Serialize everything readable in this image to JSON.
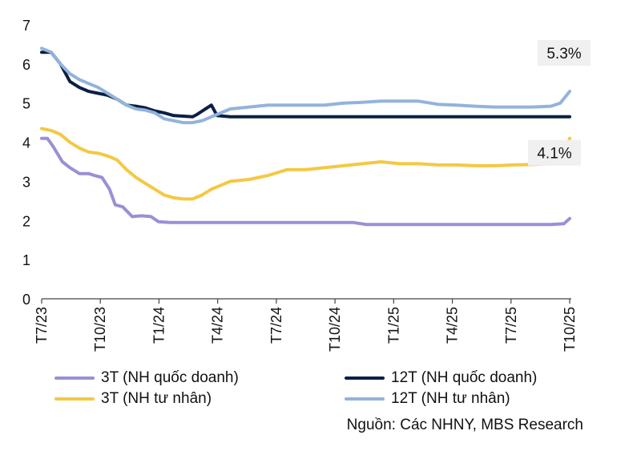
{
  "chart_data": {
    "type": "line",
    "title": "",
    "xlabel": "",
    "ylabel": "",
    "ylim": [
      0,
      7
    ],
    "yticks": [
      "0",
      "1",
      "2",
      "3",
      "4",
      "5",
      "6",
      "7"
    ],
    "grid": false,
    "legend_position": "bottom",
    "x_ticks": [
      "T7/23",
      "T10/23",
      "T1/24",
      "T4/24",
      "T7/24",
      "T10/24",
      "T1/25",
      "T4/25",
      "T7/25",
      "T10/25"
    ],
    "series": [
      {
        "name": "3T (NH quốc doanh)",
        "color": "#9b8fd6",
        "points": [
          [
            0,
            4.1
          ],
          [
            0.3,
            4.1
          ],
          [
            0.6,
            3.9
          ],
          [
            1.1,
            3.5
          ],
          [
            1.5,
            3.35
          ],
          [
            2,
            3.2
          ],
          [
            2.5,
            3.2
          ],
          [
            2.8,
            3.15
          ],
          [
            3.2,
            3.1
          ],
          [
            3.6,
            2.8
          ],
          [
            3.9,
            2.4
          ],
          [
            4.3,
            2.35
          ],
          [
            4.8,
            2.1
          ],
          [
            5.3,
            2.12
          ],
          [
            5.8,
            2.1
          ],
          [
            6.2,
            1.97
          ],
          [
            6.8,
            1.95
          ],
          [
            9,
            1.95
          ],
          [
            13,
            1.95
          ],
          [
            15,
            1.95
          ],
          [
            16.5,
            1.95
          ],
          [
            17.2,
            1.9
          ],
          [
            20,
            1.9
          ],
          [
            25,
            1.9
          ],
          [
            27,
            1.9
          ],
          [
            27.7,
            1.92
          ],
          [
            28,
            2.05
          ]
        ]
      },
      {
        "name": "12T (NH quốc doanh)",
        "color": "#0b1f45",
        "points": [
          [
            0,
            6.3
          ],
          [
            0.5,
            6.3
          ],
          [
            1,
            6.0
          ],
          [
            1.5,
            5.55
          ],
          [
            2,
            5.4
          ],
          [
            2.5,
            5.3
          ],
          [
            3,
            5.25
          ],
          [
            3.5,
            5.2
          ],
          [
            4,
            5.1
          ],
          [
            4.5,
            4.95
          ],
          [
            5,
            4.92
          ],
          [
            5.5,
            4.88
          ],
          [
            6,
            4.8
          ],
          [
            6.5,
            4.75
          ],
          [
            7,
            4.68
          ],
          [
            8,
            4.65
          ],
          [
            8.2,
            4.7
          ],
          [
            9,
            4.95
          ],
          [
            9.3,
            4.68
          ],
          [
            10,
            4.65
          ],
          [
            28,
            4.65
          ]
        ]
      },
      {
        "name": "3T (NH tư nhân)",
        "color": "#f4c842",
        "points": [
          [
            0,
            4.35
          ],
          [
            0.5,
            4.3
          ],
          [
            1,
            4.2
          ],
          [
            1.5,
            4.0
          ],
          [
            2,
            3.85
          ],
          [
            2.5,
            3.75
          ],
          [
            3,
            3.72
          ],
          [
            3.5,
            3.65
          ],
          [
            4,
            3.55
          ],
          [
            4.5,
            3.3
          ],
          [
            5,
            3.1
          ],
          [
            5.5,
            2.95
          ],
          [
            6,
            2.8
          ],
          [
            6.5,
            2.65
          ],
          [
            7,
            2.58
          ],
          [
            7.5,
            2.55
          ],
          [
            8,
            2.55
          ],
          [
            8.5,
            2.65
          ],
          [
            9,
            2.8
          ],
          [
            9.5,
            2.9
          ],
          [
            10,
            3.0
          ],
          [
            11,
            3.05
          ],
          [
            12,
            3.15
          ],
          [
            13,
            3.3
          ],
          [
            14,
            3.3
          ],
          [
            15,
            3.35
          ],
          [
            16,
            3.4
          ],
          [
            17,
            3.45
          ],
          [
            18,
            3.5
          ],
          [
            19,
            3.45
          ],
          [
            20,
            3.45
          ],
          [
            21,
            3.42
          ],
          [
            22,
            3.42
          ],
          [
            23,
            3.4
          ],
          [
            24,
            3.4
          ],
          [
            25,
            3.42
          ],
          [
            26,
            3.43
          ],
          [
            27,
            3.45
          ],
          [
            27.5,
            3.5
          ],
          [
            28,
            4.1
          ]
        ]
      },
      {
        "name": "12T (NH tư nhân)",
        "color": "#92b3dc",
        "points": [
          [
            0,
            6.4
          ],
          [
            0.5,
            6.3
          ],
          [
            1,
            6.0
          ],
          [
            1.5,
            5.75
          ],
          [
            2,
            5.6
          ],
          [
            2.5,
            5.5
          ],
          [
            3,
            5.4
          ],
          [
            3.5,
            5.25
          ],
          [
            4,
            5.1
          ],
          [
            4.5,
            4.95
          ],
          [
            5,
            4.85
          ],
          [
            5.5,
            4.82
          ],
          [
            6,
            4.75
          ],
          [
            6.5,
            4.6
          ],
          [
            7,
            4.55
          ],
          [
            7.5,
            4.5
          ],
          [
            8,
            4.5
          ],
          [
            8.5,
            4.55
          ],
          [
            9,
            4.65
          ],
          [
            9.5,
            4.75
          ],
          [
            10,
            4.85
          ],
          [
            11,
            4.9
          ],
          [
            12,
            4.95
          ],
          [
            13,
            4.95
          ],
          [
            14,
            4.95
          ],
          [
            15,
            4.95
          ],
          [
            16,
            5.0
          ],
          [
            17,
            5.02
          ],
          [
            18,
            5.05
          ],
          [
            19,
            5.05
          ],
          [
            20,
            5.05
          ],
          [
            21,
            4.97
          ],
          [
            22,
            4.95
          ],
          [
            23,
            4.92
          ],
          [
            24,
            4.9
          ],
          [
            25,
            4.9
          ],
          [
            26,
            4.9
          ],
          [
            27,
            4.92
          ],
          [
            27.5,
            5.0
          ],
          [
            28,
            5.3
          ]
        ]
      }
    ],
    "annotations": [
      {
        "text": "5.3%",
        "series": "12T (NH tư nhân)",
        "x": 28,
        "y": 5.3
      },
      {
        "text": "4.1%",
        "series": "3T (NH tư nhân)",
        "x": 28,
        "y": 4.1
      }
    ]
  },
  "source_note": "Nguồn: Các NHNY, MBS Research"
}
